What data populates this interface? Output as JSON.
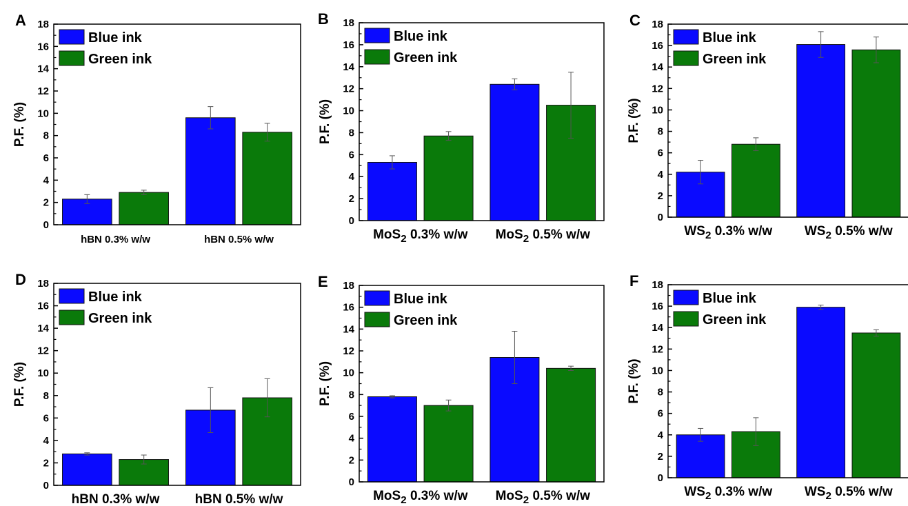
{
  "colors": {
    "blue": "#0a0aff",
    "green": "#0a7a0a"
  },
  "chart_data": [
    {
      "panel": "A",
      "type": "bar",
      "categories": [
        "hBN 0.3% w/w",
        "hBN 0.5% w/w"
      ],
      "ylabel": "P.F. (%)",
      "ylim": [
        0,
        18
      ],
      "yticks": [
        0,
        2,
        4,
        6,
        8,
        10,
        12,
        14,
        16,
        18
      ],
      "legend": "top-left",
      "series": [
        {
          "name": "Blue ink",
          "color": "blue",
          "values": [
            2.3,
            9.6
          ],
          "errors": [
            0.4,
            1.0
          ]
        },
        {
          "name": "Green ink",
          "color": "green",
          "values": [
            2.9,
            8.3
          ],
          "errors": [
            0.2,
            0.8
          ]
        }
      ]
    },
    {
      "panel": "B",
      "type": "bar",
      "categories": [
        "MoS2 0.3% w/w",
        "MoS2 0.5% w/w"
      ],
      "ylabel": "P.F. (%)",
      "ylim": [
        0,
        18
      ],
      "yticks": [
        0,
        2,
        4,
        6,
        8,
        10,
        12,
        14,
        16,
        18
      ],
      "legend": "top-left",
      "series": [
        {
          "name": "Blue ink",
          "color": "blue",
          "values": [
            5.3,
            12.4
          ],
          "errors": [
            0.6,
            0.5
          ]
        },
        {
          "name": "Green ink",
          "color": "green",
          "values": [
            7.7,
            10.5
          ],
          "errors": [
            0.4,
            3.0
          ]
        }
      ]
    },
    {
      "panel": "C",
      "type": "bar",
      "categories": [
        "WS2 0.3% w/w",
        "WS2 0.5% w/w"
      ],
      "ylabel": "P.F. (%)",
      "ylim": [
        0,
        18
      ],
      "yticks": [
        0,
        2,
        4,
        6,
        8,
        10,
        12,
        14,
        16,
        18
      ],
      "legend": "top-left",
      "series": [
        {
          "name": "Blue ink",
          "color": "blue",
          "values": [
            4.2,
            16.1
          ],
          "errors": [
            1.1,
            1.2
          ]
        },
        {
          "name": "Green ink",
          "color": "green",
          "values": [
            6.8,
            15.6
          ],
          "errors": [
            0.6,
            1.2
          ]
        }
      ]
    },
    {
      "panel": "D",
      "type": "bar",
      "categories": [
        "hBN 0.3% w/w",
        "hBN 0.5% w/w"
      ],
      "ylabel": "P.F. (%)",
      "ylim": [
        0,
        18
      ],
      "yticks": [
        0,
        2,
        4,
        6,
        8,
        10,
        12,
        14,
        16,
        18
      ],
      "legend": "top-left",
      "series": [
        {
          "name": "Blue ink",
          "color": "blue",
          "values": [
            2.8,
            6.7
          ],
          "errors": [
            0.1,
            2.0
          ]
        },
        {
          "name": "Green ink",
          "color": "green",
          "values": [
            2.3,
            7.8
          ],
          "errors": [
            0.4,
            1.7
          ]
        }
      ]
    },
    {
      "panel": "E",
      "type": "bar",
      "categories": [
        "MoS2 0.3% w/w",
        "MoS2 0.5% w/w"
      ],
      "ylabel": "P.F. (%)",
      "ylim": [
        0,
        18
      ],
      "yticks": [
        0,
        2,
        4,
        6,
        8,
        10,
        12,
        14,
        16,
        18
      ],
      "legend": "top-left",
      "series": [
        {
          "name": "Blue ink",
          "color": "blue",
          "values": [
            7.8,
            11.4
          ],
          "errors": [
            0.1,
            2.4
          ]
        },
        {
          "name": "Green ink",
          "color": "green",
          "values": [
            7.0,
            10.4
          ],
          "errors": [
            0.5,
            0.2
          ]
        }
      ]
    },
    {
      "panel": "F",
      "type": "bar",
      "categories": [
        "WS2 0.3% w/w",
        "WS2 0.5% w/w"
      ],
      "ylabel": "P.F. (%)",
      "ylim": [
        0,
        18
      ],
      "yticks": [
        0,
        2,
        4,
        6,
        8,
        10,
        12,
        14,
        16,
        18
      ],
      "legend": "top-left",
      "series": [
        {
          "name": "Blue ink",
          "color": "blue",
          "values": [
            4.0,
            15.9
          ],
          "errors": [
            0.6,
            0.2
          ]
        },
        {
          "name": "Green ink",
          "color": "green",
          "values": [
            4.3,
            13.5
          ],
          "errors": [
            1.3,
            0.3
          ]
        }
      ]
    }
  ]
}
